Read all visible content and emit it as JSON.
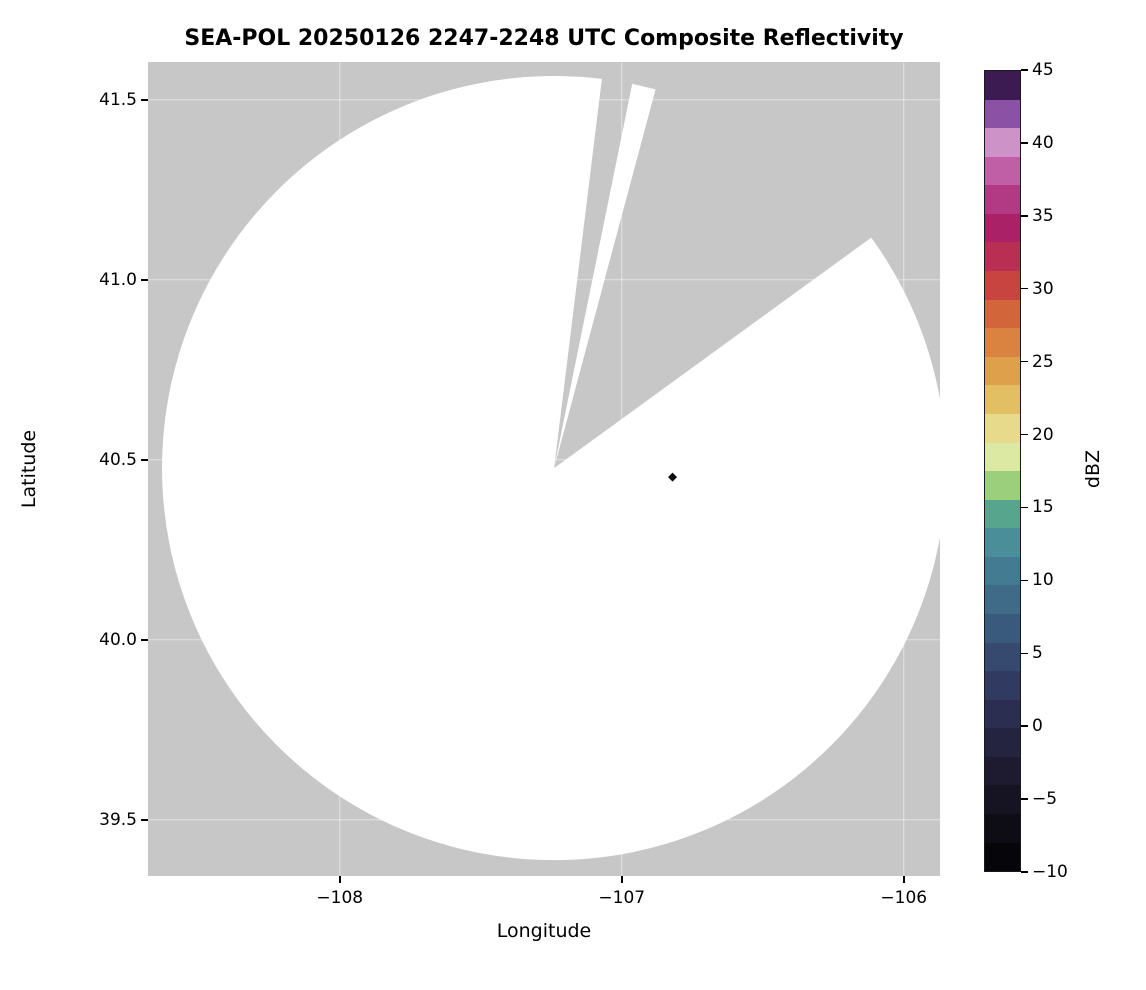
{
  "chart_data": {
    "type": "heatmap",
    "title": "SEA-POL 20250126 2247-2248 UTC Composite Reflectivity",
    "xlabel": "Longitude",
    "ylabel": "Latitude",
    "xlim": [
      -108.68,
      -105.87
    ],
    "ylim": [
      39.344,
      41.605
    ],
    "x_ticks": [
      {
        "value": -108,
        "label": "−108"
      },
      {
        "value": -107,
        "label": "−107"
      },
      {
        "value": -106,
        "label": "−106"
      }
    ],
    "y_ticks": [
      {
        "value": 39.5,
        "label": "39.5"
      },
      {
        "value": 40.0,
        "label": "40.0"
      },
      {
        "value": 40.5,
        "label": "40.5"
      },
      {
        "value": 41.0,
        "label": "41.0"
      },
      {
        "value": 41.5,
        "label": "41.5"
      }
    ],
    "grid": true,
    "grid_color": "#ffffff",
    "no_data_color": "#c7c7c7",
    "radar_coverage": {
      "description": "white disc = radar-scanned area with no detectable echo; gray = no data",
      "center_lon": -107.24,
      "center_lat": 40.477,
      "radius_deg_lat": 1.089,
      "disc_color": "#ffffff",
      "missing_sectors_azimuth_deg_from_north": [
        [
          7,
          11.5
        ],
        [
          15,
          54
        ]
      ]
    },
    "echoes": [
      {
        "lon": -106.82,
        "lat": 40.452,
        "approx_dbz": -10,
        "color": "#0c0c12"
      }
    ],
    "colorbar": {
      "label": "dBZ",
      "min": -10,
      "max": 45,
      "ticks": [
        {
          "value": 45,
          "label": "45"
        },
        {
          "value": 40,
          "label": "40"
        },
        {
          "value": 35,
          "label": "35"
        },
        {
          "value": 30,
          "label": "30"
        },
        {
          "value": 25,
          "label": "25"
        },
        {
          "value": 20,
          "label": "20"
        },
        {
          "value": 15,
          "label": "15"
        },
        {
          "value": 10,
          "label": "10"
        },
        {
          "value": 5,
          "label": "5"
        },
        {
          "value": 0,
          "label": "0"
        },
        {
          "value": -5,
          "label": "−5"
        },
        {
          "value": -10,
          "label": "−10"
        }
      ],
      "colors_low_to_high": [
        "#060509",
        "#0e0c15",
        "#161323",
        "#1e1b31",
        "#252440",
        "#2b2e50",
        "#313b61",
        "#364a70",
        "#3a5a7d",
        "#3f6b89",
        "#437c92",
        "#498e98",
        "#57a58d",
        "#9ccf7c",
        "#dce9a3",
        "#e7db8b",
        "#e3bf63",
        "#dfa04c",
        "#da8340",
        "#d2653a",
        "#c84440",
        "#b92f53",
        "#ab2168",
        "#b23a85",
        "#c05fa5",
        "#cd92c8",
        "#8a51a5",
        "#3c1a52"
      ]
    }
  }
}
